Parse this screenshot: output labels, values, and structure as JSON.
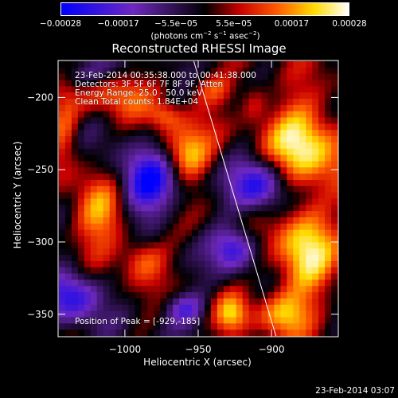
{
  "chart_data": {
    "type": "heatmap",
    "title": "Reconstructed RHESSI Image",
    "xlabel": "Heliocentric X (arcsec)",
    "ylabel": "Heliocentric Y (arcsec)",
    "xlim": [
      -1045,
      -855
    ],
    "ylim": [
      -365,
      -175
    ],
    "x_ticks": [
      -1000,
      -950,
      -900
    ],
    "x_tick_labels": [
      "−1000",
      "−950",
      "−900"
    ],
    "y_ticks": [
      -200,
      -250,
      -300,
      -350
    ],
    "y_tick_labels": [
      "−200",
      "−250",
      "−300",
      "−350"
    ],
    "colorbar": {
      "range": [
        -0.00028,
        0.00028
      ],
      "tick_labels": [
        "−0.00028",
        "−0.00017",
        "−5.5e−05",
        "5.5e−05",
        "0.00017",
        "0.00028"
      ],
      "units_prefix": "(photons cm",
      "units_exp1": "−2",
      "units_mid1": " s",
      "units_exp2": "−1",
      "units_mid2": " asec",
      "units_exp3": "−2",
      "units_suffix": ")"
    },
    "annotations": {
      "time_range": "23-Feb-2014 00:35:38.000 to 00:41:38.000",
      "detectors": "Detectors: 3F 5F 6F 7F 8F 9F, Atten",
      "energy": "Energy Range: 25.0 - 50.0 keV",
      "clean": "Clean     Total counts: 1.84E+04",
      "peak": "Position of Peak = [-929,-185]"
    },
    "limb_line": {
      "x": [
        -953,
        -897
      ],
      "y": [
        -175,
        -365
      ]
    }
  },
  "footer": {
    "timestamp": "23-Feb-2014 03:07"
  },
  "colors": {
    "background": "#000000",
    "colormap_low": "#0000ff",
    "colormap_mid": "#000000",
    "colormap_high": "#ffffff"
  }
}
